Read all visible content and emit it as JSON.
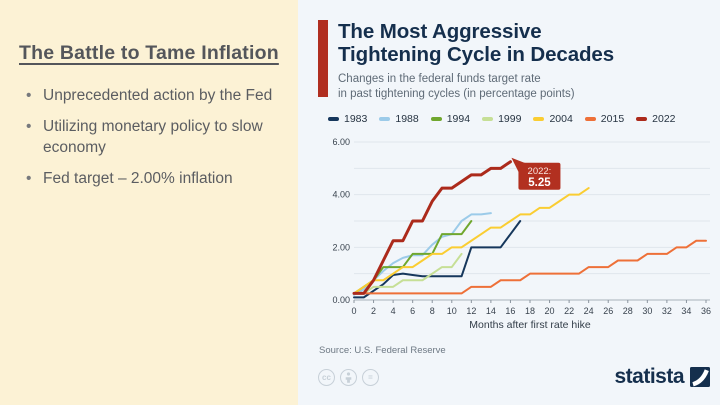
{
  "left_panel": {
    "heading": "The Battle to Tame Inflation",
    "bullets": [
      "Unprecedented action by the Fed",
      "Utilizing monetary policy to slow economy",
      "Fed target – 2.00% inflation"
    ]
  },
  "chart_panel": {
    "source": "Source: U.S. Federal Reserve",
    "brand": "statista",
    "accent_color": "#B02E20",
    "license_icons": [
      "cc-icon",
      "attribution-icon",
      "no-derivatives-icon"
    ]
  },
  "chart_data": {
    "type": "line",
    "title": "The Most Aggressive\nTightening Cycle in Decades",
    "subtitle": "Changes in the federal funds target rate\nin past tightening cycles (in percentage points)",
    "xlabel": "Months after first rate hike",
    "ylabel": "",
    "xlim": [
      0,
      36
    ],
    "ylim": [
      0,
      6
    ],
    "x_ticks": [
      0,
      2,
      4,
      6,
      8,
      10,
      12,
      14,
      16,
      18,
      20,
      22,
      24,
      26,
      28,
      30,
      32,
      34,
      36
    ],
    "y_tick_labels": [
      {
        "value": 0,
        "label": "0.00"
      },
      {
        "value": 2,
        "label": "2.00"
      },
      {
        "value": 4,
        "label": "4.00"
      },
      {
        "value": 6,
        "label": "6.00"
      }
    ],
    "grid": true,
    "legend_position": "top",
    "annotation": {
      "line1": "2022:",
      "line2": "5.25",
      "x": 16,
      "y": 5.25,
      "color": "#B23020"
    },
    "series": [
      {
        "name": "1983",
        "color": "#16375C",
        "values": [
          0.1,
          0.1,
          0.35,
          0.6,
          0.95,
          1.0,
          0.95,
          0.9,
          0.9,
          0.9,
          0.9,
          0.9,
          2.0,
          2.0,
          2.0,
          2.0,
          2.5,
          3.0
        ]
      },
      {
        "name": "1988",
        "color": "#9CCBE9",
        "values": [
          0.2,
          0.4,
          0.75,
          1.1,
          1.4,
          1.6,
          1.7,
          1.7,
          2.1,
          2.4,
          2.5,
          3.0,
          3.25,
          3.25,
          3.3
        ]
      },
      {
        "name": "1994",
        "color": "#70A72E",
        "values": [
          0.25,
          0.5,
          0.75,
          1.25,
          1.25,
          1.25,
          1.75,
          1.75,
          1.75,
          2.5,
          2.5,
          2.5,
          3.0
        ]
      },
      {
        "name": "1999",
        "color": "#C6DF96",
        "values": [
          0.25,
          0.25,
          0.5,
          0.5,
          0.5,
          0.75,
          0.75,
          0.75,
          1.0,
          1.25,
          1.25,
          1.75
        ]
      },
      {
        "name": "2004",
        "color": "#FACD32",
        "values": [
          0.25,
          0.5,
          0.75,
          0.75,
          1.0,
          1.25,
          1.25,
          1.5,
          1.75,
          1.75,
          2.0,
          2.0,
          2.25,
          2.5,
          2.75,
          2.75,
          3.0,
          3.25,
          3.25,
          3.5,
          3.5,
          3.75,
          4.0,
          4.0,
          4.25
        ]
      },
      {
        "name": "2015",
        "color": "#EE7038",
        "values": [
          0.25,
          0.25,
          0.25,
          0.25,
          0.25,
          0.25,
          0.25,
          0.25,
          0.25,
          0.25,
          0.25,
          0.25,
          0.5,
          0.5,
          0.5,
          0.75,
          0.75,
          0.75,
          1.0,
          1.0,
          1.0,
          1.0,
          1.0,
          1.0,
          1.25,
          1.25,
          1.25,
          1.5,
          1.5,
          1.5,
          1.75,
          1.75,
          1.75,
          2.0,
          2.0,
          2.25,
          2.25
        ]
      },
      {
        "name": "2022",
        "color": "#AC2A1B",
        "values": [
          0.25,
          0.25,
          0.75,
          1.5,
          2.25,
          2.25,
          3.0,
          3.0,
          3.75,
          4.25,
          4.25,
          4.5,
          4.75,
          4.75,
          5.0,
          5.0,
          5.25
        ]
      }
    ]
  }
}
